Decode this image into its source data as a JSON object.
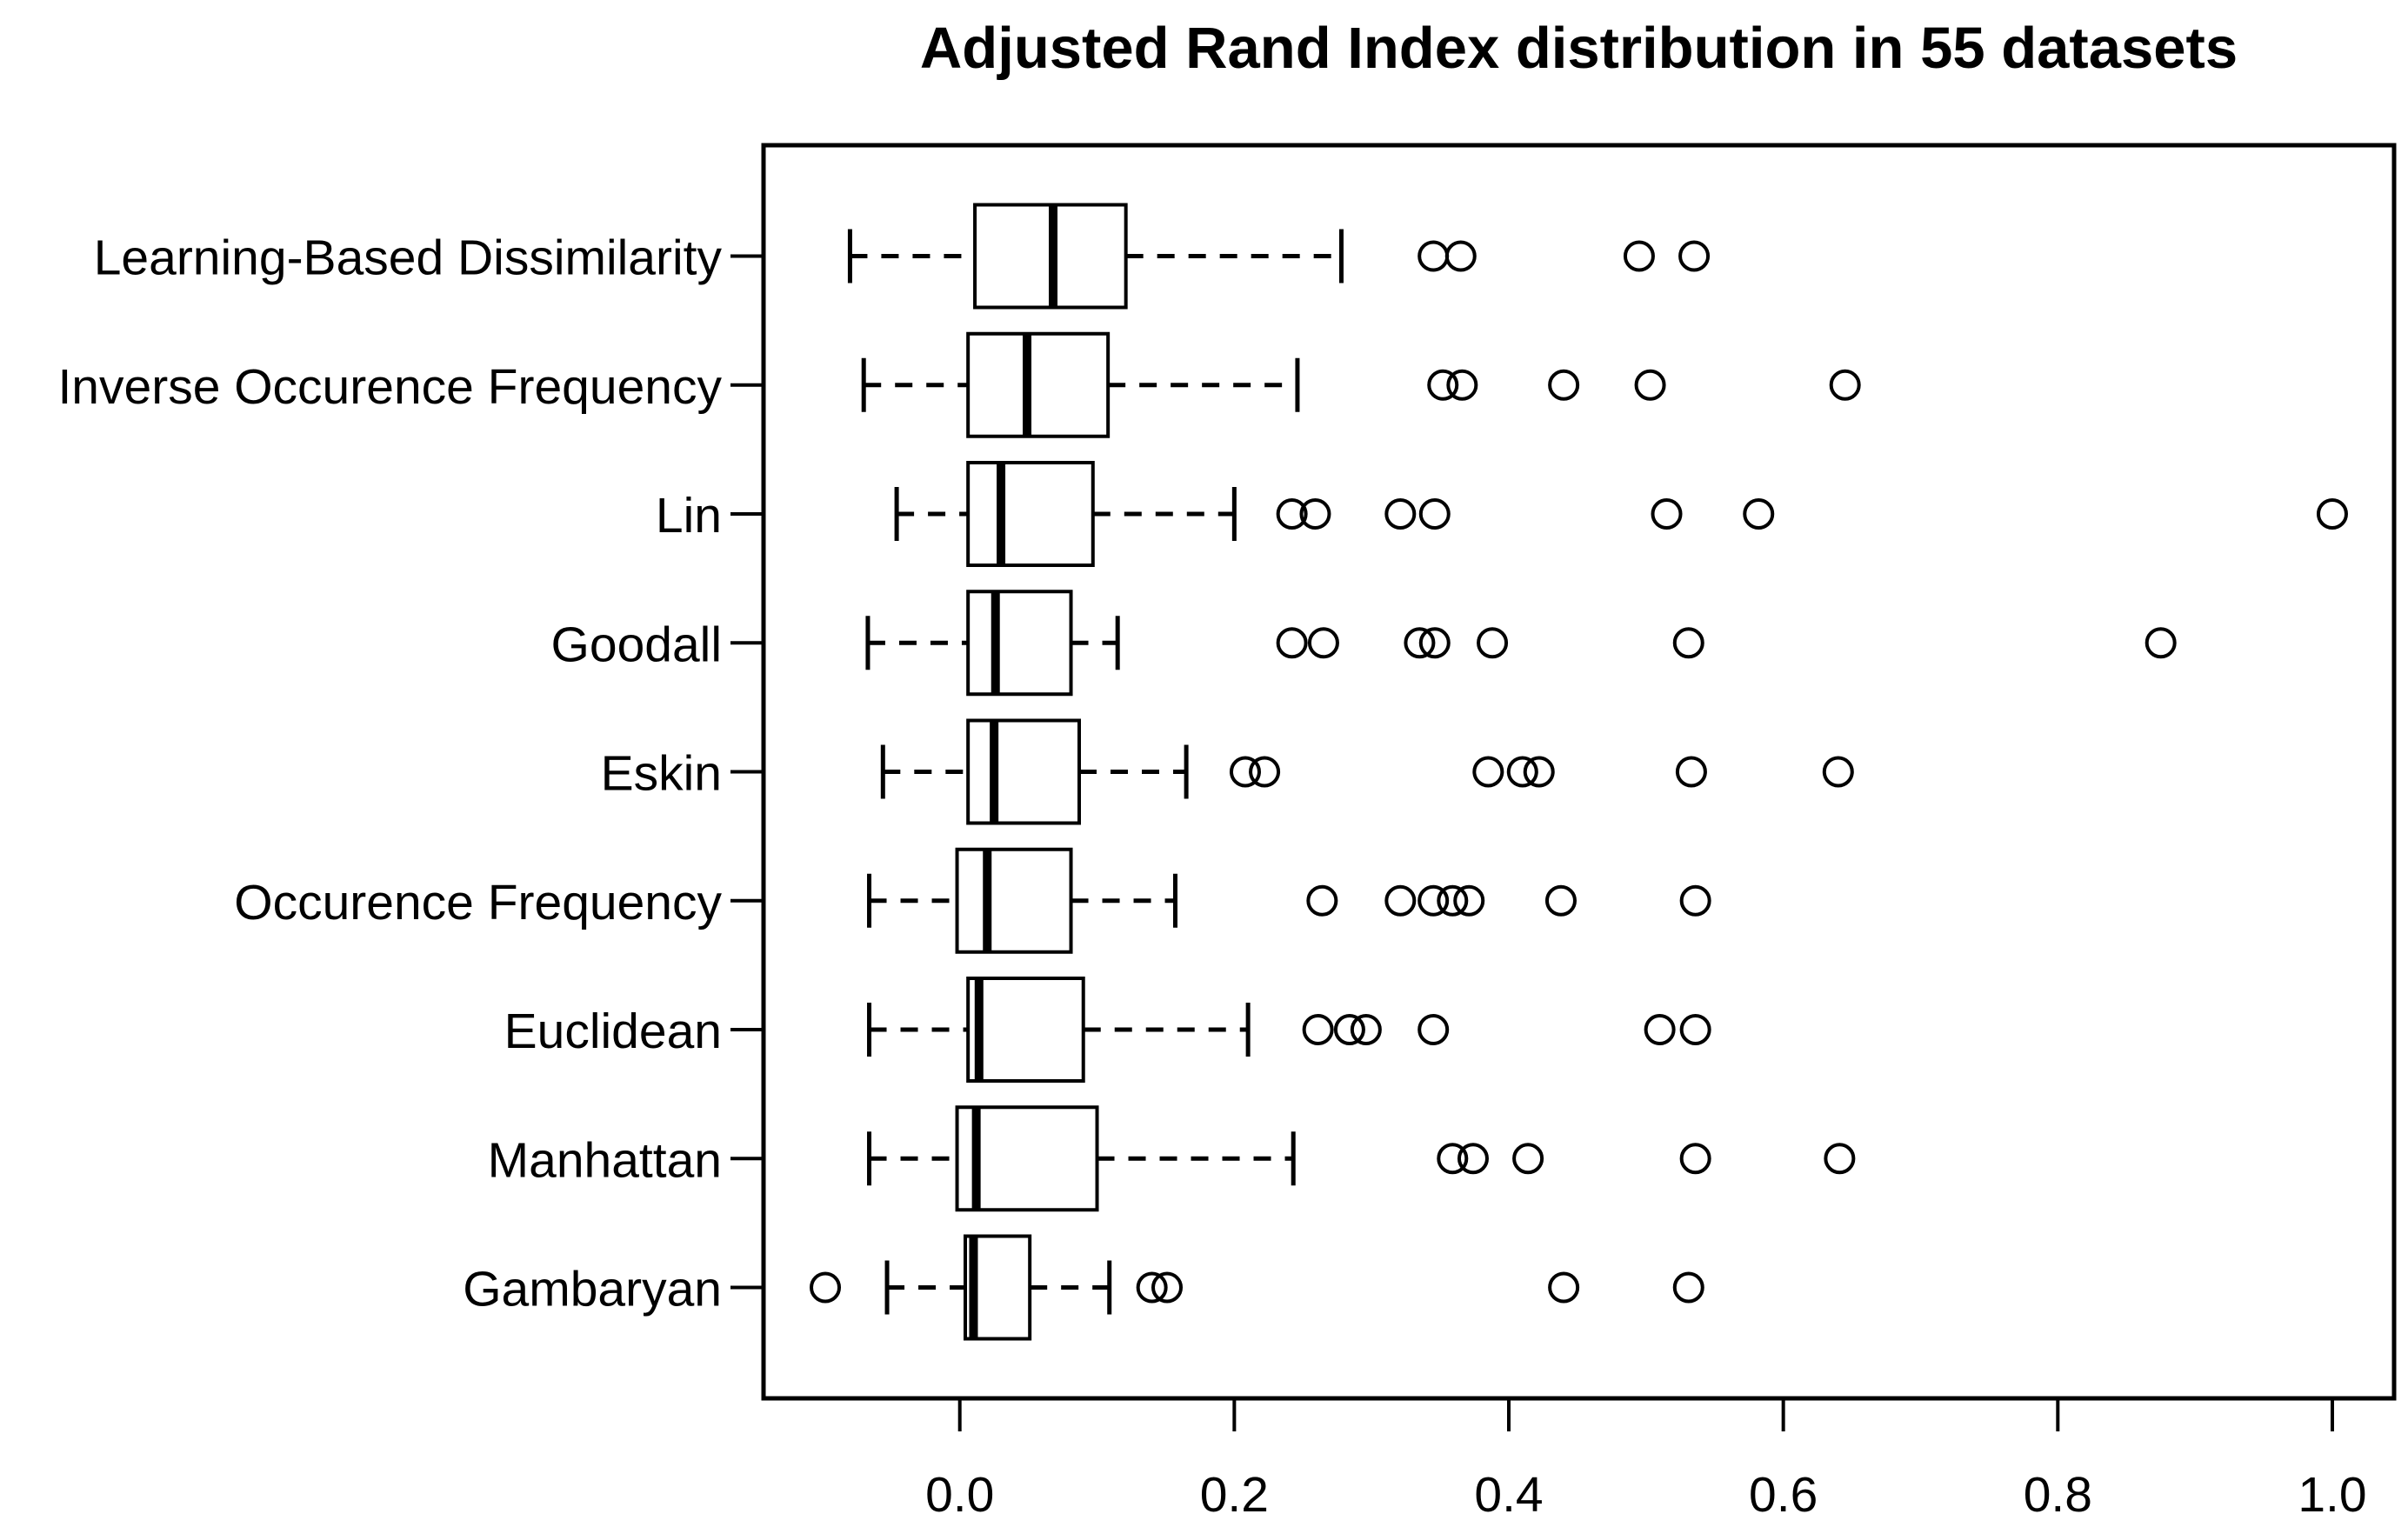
{
  "figure": {
    "background": "#ffffff",
    "ink": "#000000"
  },
  "chart_data": {
    "type": "boxplot",
    "orientation": "horizontal",
    "title": "Adjusted Rand Index distribution in 55 datasets",
    "xlabel": "",
    "ylabel": "",
    "xlim": [
      -0.143,
      1.045
    ],
    "grid": false,
    "legend": null,
    "x_ticks": [
      {
        "value": 0.0,
        "label": "0.0"
      },
      {
        "value": 0.2,
        "label": "0.2"
      },
      {
        "value": 0.4,
        "label": "0.4"
      },
      {
        "value": 0.6,
        "label": "0.6"
      },
      {
        "value": 0.8,
        "label": "0.8"
      },
      {
        "value": 1.0,
        "label": "1.0"
      }
    ],
    "categories": [
      "Learning-Based Dissimilarity",
      "Inverse Occurence Frequency",
      "Lin",
      "Goodall",
      "Eskin",
      "Occurence Frequency",
      "Euclidean",
      "Manhattan",
      "Gambaryan"
    ],
    "boxes": [
      {
        "label": "Learning-Based Dissimilarity",
        "whisker_low": -0.08,
        "q1": 0.011,
        "median": 0.068,
        "q3": 0.121,
        "whisker_high": 0.278,
        "outliers": [
          0.345,
          0.365,
          0.495,
          0.535
        ]
      },
      {
        "label": "Inverse Occurence Frequency",
        "whisker_low": -0.07,
        "q1": 0.006,
        "median": 0.049,
        "q3": 0.108,
        "whisker_high": 0.246,
        "outliers": [
          0.352,
          0.366,
          0.44,
          0.503,
          0.645
        ]
      },
      {
        "label": "Lin",
        "whisker_low": -0.046,
        "q1": 0.006,
        "median": 0.03,
        "q3": 0.097,
        "whisker_high": 0.2,
        "outliers": [
          0.242,
          0.259,
          0.321,
          0.346,
          0.515,
          0.582,
          1.0
        ]
      },
      {
        "label": "Goodall",
        "whisker_low": -0.067,
        "q1": 0.006,
        "median": 0.026,
        "q3": 0.081,
        "whisker_high": 0.115,
        "outliers": [
          0.242,
          0.265,
          0.335,
          0.346,
          0.388,
          0.531,
          0.875
        ]
      },
      {
        "label": "Eskin",
        "whisker_low": -0.056,
        "q1": 0.006,
        "median": 0.025,
        "q3": 0.087,
        "whisker_high": 0.165,
        "outliers": [
          0.208,
          0.222,
          0.385,
          0.41,
          0.422,
          0.533,
          0.64
        ]
      },
      {
        "label": "Occurence Frequency",
        "whisker_low": -0.066,
        "q1": -0.002,
        "median": 0.02,
        "q3": 0.081,
        "whisker_high": 0.157,
        "outliers": [
          0.264,
          0.321,
          0.345,
          0.359,
          0.371,
          0.438,
          0.536
        ]
      },
      {
        "label": "Euclidean",
        "whisker_low": -0.066,
        "q1": 0.006,
        "median": 0.014,
        "q3": 0.09,
        "whisker_high": 0.21,
        "outliers": [
          0.261,
          0.284,
          0.296,
          0.345,
          0.51,
          0.536
        ]
      },
      {
        "label": "Manhattan",
        "whisker_low": -0.066,
        "q1": -0.002,
        "median": 0.012,
        "q3": 0.1,
        "whisker_high": 0.243,
        "outliers": [
          0.359,
          0.374,
          0.414,
          0.536,
          0.641
        ]
      },
      {
        "label": "Gambaryan",
        "whisker_low": -0.053,
        "q1": 0.004,
        "median": 0.01,
        "q3": 0.051,
        "whisker_high": 0.109,
        "outliers": [
          -0.098,
          0.14,
          0.151,
          0.44,
          0.531
        ]
      }
    ]
  }
}
